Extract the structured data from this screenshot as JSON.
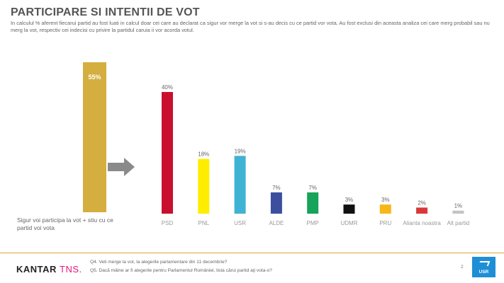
{
  "header": {
    "title": "PARTICIPARE SI INTENTII DE VOT",
    "subtitle": "In calculul % aferent fiecarui partid au fost luati in calcul doar cei care au declarat ca sigur vor merge la vot si s-au decis cu ce partid vor vota. Au fost exclusi din aceasta analiza cei care merg probabil sau nu merg la vot, respectiv cei indecisi cu privire la partidul caruia ii vor acorda votul."
  },
  "participation": {
    "value": 55,
    "label": "55%",
    "caption": "Sigur voi participa la vot + stiu cu ce partid voi vota",
    "color": "#d4ae3f"
  },
  "chart_data": {
    "type": "bar",
    "categories": [
      "PSD",
      "PNL",
      "USR",
      "ALDE",
      "PMP",
      "UDMR",
      "PRU",
      "Alianta noastra",
      "Alt partid"
    ],
    "values": [
      40,
      18,
      19,
      7,
      7,
      3,
      3,
      2,
      1
    ],
    "labels": [
      "40%",
      "18%",
      "19%",
      "7%",
      "7%",
      "3%",
      "3%",
      "2%",
      "1%"
    ],
    "colors": [
      "#c8102e",
      "#ffed00",
      "#3fb3d4",
      "#3b4f9e",
      "#16a35a",
      "#111111",
      "#f7b718",
      "#d9373a",
      "#c4c4c4"
    ],
    "ylim": [
      0,
      40
    ]
  },
  "footer": {
    "brand_part1": "KANTAR",
    "brand_part2": "TNS.",
    "q4": "Q4. Veti merge la vot, la alegerile parlamentare din 11 decembrie?",
    "q5": "Q5. Dacă mâine ar fi alegerile pentru Parlamentul României, lista cărui partid aţi vota-o?",
    "page_number": "2",
    "logo_text": "USR"
  }
}
